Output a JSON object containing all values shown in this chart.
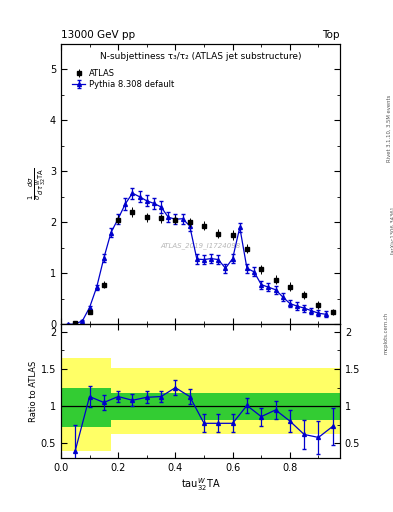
{
  "title_top": "N-subjettiness τ₃/τ₂ (ATLAS jet substructure)",
  "header_left": "13000 GeV pp",
  "header_right": "Top",
  "watermark": "ATLAS_2019_I1724098",
  "rivet_label": "Rivet 3.1.10, 3.5M events",
  "arxiv_label": "[arXiv:1306.3436]",
  "mcplots_label": "mcplots.cern.ch",
  "atlas_x": [
    0.05,
    0.1,
    0.15,
    0.2,
    0.25,
    0.3,
    0.35,
    0.4,
    0.45,
    0.5,
    0.55,
    0.6,
    0.65,
    0.7,
    0.75,
    0.8,
    0.85,
    0.9,
    0.95
  ],
  "atlas_y": [
    0.02,
    0.24,
    0.78,
    2.05,
    2.2,
    2.1,
    2.08,
    2.05,
    2.0,
    1.93,
    1.78,
    1.75,
    1.48,
    1.08,
    0.88,
    0.74,
    0.58,
    0.38,
    0.24
  ],
  "atlas_yerr": [
    0.02,
    0.04,
    0.07,
    0.09,
    0.09,
    0.09,
    0.09,
    0.09,
    0.09,
    0.09,
    0.09,
    0.09,
    0.09,
    0.09,
    0.09,
    0.09,
    0.08,
    0.07,
    0.06
  ],
  "pythia_x": [
    0.025,
    0.05,
    0.075,
    0.1,
    0.125,
    0.15,
    0.175,
    0.2,
    0.225,
    0.25,
    0.275,
    0.3,
    0.325,
    0.35,
    0.375,
    0.4,
    0.425,
    0.45,
    0.475,
    0.5,
    0.525,
    0.55,
    0.575,
    0.6,
    0.625,
    0.65,
    0.675,
    0.7,
    0.725,
    0.75,
    0.775,
    0.8,
    0.825,
    0.85,
    0.875,
    0.9,
    0.925
  ],
  "pythia_y": [
    0.0,
    0.01,
    0.07,
    0.33,
    0.73,
    1.3,
    1.8,
    2.07,
    2.36,
    2.57,
    2.5,
    2.42,
    2.37,
    2.3,
    2.1,
    2.06,
    2.07,
    1.93,
    1.28,
    1.27,
    1.29,
    1.27,
    1.1,
    1.29,
    1.9,
    1.1,
    1.03,
    0.78,
    0.73,
    0.68,
    0.54,
    0.41,
    0.36,
    0.32,
    0.27,
    0.22,
    0.2
  ],
  "pythia_yerr": [
    0.0,
    0.005,
    0.01,
    0.03,
    0.05,
    0.07,
    0.09,
    0.1,
    0.11,
    0.11,
    0.11,
    0.11,
    0.11,
    0.11,
    0.1,
    0.1,
    0.1,
    0.1,
    0.09,
    0.09,
    0.09,
    0.09,
    0.09,
    0.09,
    0.09,
    0.09,
    0.09,
    0.08,
    0.08,
    0.08,
    0.08,
    0.07,
    0.07,
    0.07,
    0.06,
    0.06,
    0.06
  ],
  "ratio_x": [
    0.05,
    0.1,
    0.15,
    0.2,
    0.25,
    0.3,
    0.35,
    0.4,
    0.45,
    0.5,
    0.55,
    0.6,
    0.65,
    0.7,
    0.75,
    0.8,
    0.85,
    0.9,
    0.95
  ],
  "ratio_y": [
    0.4,
    1.13,
    1.05,
    1.13,
    1.08,
    1.12,
    1.13,
    1.25,
    1.13,
    0.77,
    0.77,
    0.77,
    1.01,
    0.86,
    0.95,
    0.8,
    0.62,
    0.58,
    0.73
  ],
  "ratio_yerr": [
    0.35,
    0.14,
    0.1,
    0.08,
    0.08,
    0.08,
    0.08,
    0.1,
    0.1,
    0.12,
    0.12,
    0.12,
    0.1,
    0.12,
    0.12,
    0.15,
    0.2,
    0.22,
    0.25
  ],
  "yellow_xedges": [
    0.0,
    0.1,
    0.175,
    0.275,
    0.9,
    1.0
  ],
  "yellow_lo": [
    0.4,
    0.4,
    0.62,
    0.62,
    0.62,
    0.62
  ],
  "yellow_hi": [
    1.65,
    1.65,
    1.52,
    1.52,
    1.52,
    1.52
  ],
  "green_xedges": [
    0.0,
    0.1,
    0.175,
    0.275,
    0.9,
    1.0
  ],
  "green_lo": [
    0.72,
    0.72,
    0.82,
    0.82,
    0.82,
    0.82
  ],
  "green_hi": [
    1.25,
    1.25,
    1.18,
    1.18,
    1.18,
    1.18
  ],
  "main_ylim": [
    0,
    5.5
  ],
  "main_yticks": [
    0,
    1,
    2,
    3,
    4,
    5
  ],
  "ratio_ylim": [
    0.3,
    2.1
  ],
  "ratio_yticks": [
    0.5,
    1.0,
    1.5,
    2.0
  ],
  "xlim": [
    0,
    0.975
  ],
  "blue_color": "#0000CC",
  "green_color": "#33CC33",
  "yellow_color": "#FFFF66",
  "atlas_marker_color": "black"
}
